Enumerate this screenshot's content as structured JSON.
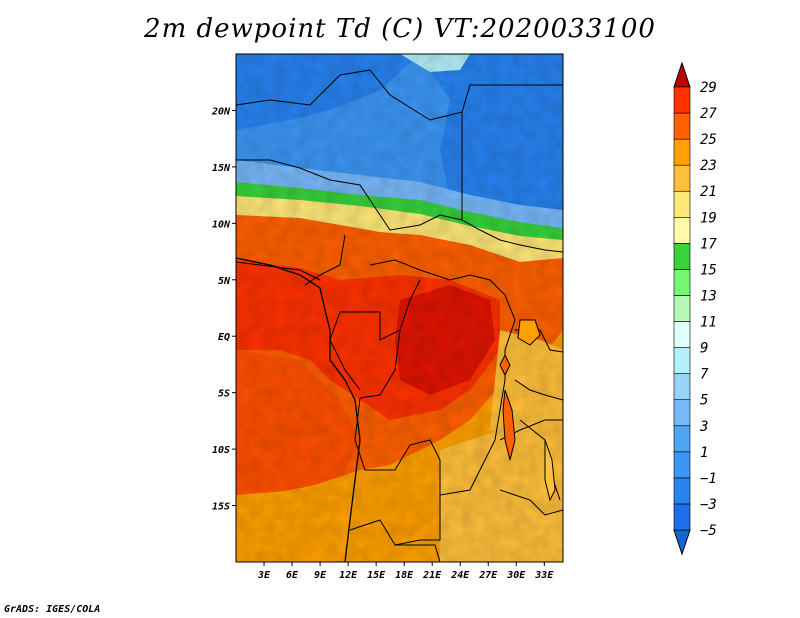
{
  "title": "2m dewpoint Td (C) VT:2020033100",
  "credit": "GrADS: IGES/COLA",
  "map": {
    "lon_range": [
      0,
      35
    ],
    "lat_range": [
      -20,
      25
    ],
    "lat_ticks": [
      {
        "value": 20,
        "label": "20N"
      },
      {
        "value": 15,
        "label": "15N"
      },
      {
        "value": 10,
        "label": "10N"
      },
      {
        "value": 5,
        "label": "5N"
      },
      {
        "value": 0,
        "label": "EQ"
      },
      {
        "value": -5,
        "label": "5S"
      },
      {
        "value": -10,
        "label": "10S"
      },
      {
        "value": -15,
        "label": "15S"
      }
    ],
    "lon_ticks": [
      {
        "value": 3,
        "label": "3E"
      },
      {
        "value": 6,
        "label": "6E"
      },
      {
        "value": 9,
        "label": "9E"
      },
      {
        "value": 12,
        "label": "12E"
      },
      {
        "value": 15,
        "label": "15E"
      },
      {
        "value": 18,
        "label": "18E"
      },
      {
        "value": 21,
        "label": "21E"
      },
      {
        "value": 24,
        "label": "24E"
      },
      {
        "value": 27,
        "label": "27E"
      },
      {
        "value": 30,
        "label": "30E"
      },
      {
        "value": 33,
        "label": "33E"
      }
    ]
  },
  "colorbar": {
    "levels": [
      {
        "label": "-5",
        "color": "#1e6eeb"
      },
      {
        "label": "-3",
        "color": "#2882f0"
      },
      {
        "label": "-1",
        "color": "#3c96f5"
      },
      {
        "label": "1",
        "color": "#50a5f5"
      },
      {
        "label": "3",
        "color": "#78b9fa"
      },
      {
        "label": "5",
        "color": "#96d2fa"
      },
      {
        "label": "7",
        "color": "#b4f0fa"
      },
      {
        "label": "9",
        "color": "#e1ffff"
      },
      {
        "label": "11",
        "color": "#b4fab4"
      },
      {
        "label": "13",
        "color": "#78f573"
      },
      {
        "label": "15",
        "color": "#37d23c"
      },
      {
        "label": "17",
        "color": "#fffaaa"
      },
      {
        "label": "19",
        "color": "#ffe878"
      },
      {
        "label": "21",
        "color": "#ffc03c"
      },
      {
        "label": "23",
        "color": "#ffa000"
      },
      {
        "label": "25",
        "color": "#ff6000"
      },
      {
        "label": "27",
        "color": "#ff3200"
      },
      {
        "label": "29",
        "color": "#e11400"
      }
    ],
    "under_color": "#1464d2",
    "over_color": "#c00000"
  }
}
